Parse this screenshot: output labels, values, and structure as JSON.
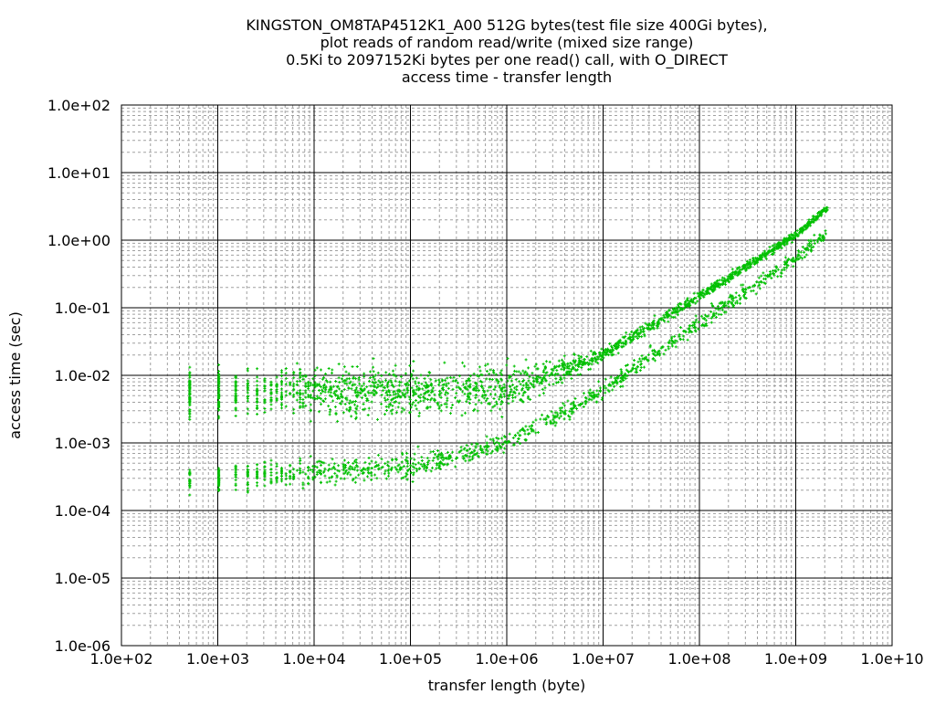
{
  "chart_data": {
    "type": "scatter",
    "title": [
      "KINGSTON_OM8TAP4512K1_A00 512G bytes(test file size 400Gi bytes),",
      "plot reads of random read/write (mixed size range)",
      "0.5Ki to 2097152Ki bytes per one read() call, with O_DIRECT",
      "access time - transfer length"
    ],
    "xlabel": "transfer length (byte)",
    "ylabel": "access time (sec)",
    "xscale": "log",
    "yscale": "log",
    "xlim": [
      100,
      10000000000
    ],
    "ylim": [
      1e-06,
      100
    ],
    "xticks": [
      100,
      1000,
      10000,
      100000,
      1000000,
      10000000,
      100000000,
      1000000000,
      10000000000
    ],
    "xtick_labels": [
      "1.0e+02",
      "1.0e+03",
      "1.0e+04",
      "1.0e+05",
      "1.0e+06",
      "1.0e+07",
      "1.0e+08",
      "1.0e+09",
      "1.0e+10"
    ],
    "yticks": [
      100,
      10,
      1,
      0.1,
      0.01,
      0.001,
      0.0001,
      1e-05,
      1e-06
    ],
    "ytick_labels": [
      "1.0e+02",
      "1.0e+01",
      "1.0e+00",
      "1.0e-01",
      "1.0e-02",
      "1.0e-03",
      "1.0e-04",
      "1.0e-05",
      "1.0e-06"
    ],
    "grid": true,
    "legend": "none",
    "series_color": "#00c000",
    "point_clouds": [
      {
        "name": "upper band",
        "x_range": [
          512,
          2147483648
        ],
        "y_profile": [
          [
            512,
            0.0055
          ],
          [
            1000000,
            0.006
          ],
          [
            10000000,
            0.02
          ],
          [
            100000000,
            0.15
          ],
          [
            1000000000,
            1.2
          ],
          [
            2147483648,
            3.0
          ]
        ],
        "spread_decades": [
          0.55,
          0.55,
          0.15,
          0.12,
          0.1,
          0.08
        ],
        "count": 1900
      },
      {
        "name": "lower band",
        "x_range": [
          512,
          2147483648
        ],
        "y_profile": [
          [
            512,
            0.00028
          ],
          [
            100000,
            0.00045
          ],
          [
            1000000,
            0.001
          ],
          [
            10000000,
            0.006
          ],
          [
            100000000,
            0.06
          ],
          [
            1000000000,
            0.55
          ],
          [
            2147483648,
            1.3
          ]
        ],
        "spread_decades": [
          0.35,
          0.3,
          0.2,
          0.2,
          0.2,
          0.2,
          0.15
        ],
        "count": 1100
      }
    ],
    "small_size_step_bytes": 512
  }
}
